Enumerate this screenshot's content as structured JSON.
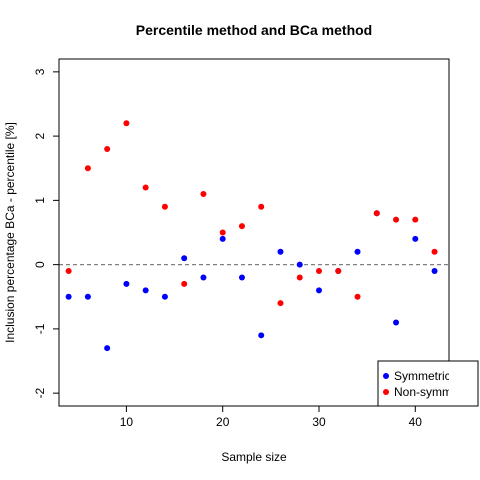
{
  "chart_data": {
    "type": "scatter",
    "title": "Percentile method and BCa method",
    "xlabel": "Sample size",
    "ylabel": "Inclusion percentage BCa - percentile [%]",
    "xlim": [
      3,
      43.5
    ],
    "ylim": [
      -2.2,
      3.2
    ],
    "xticks": [
      10,
      20,
      30,
      40
    ],
    "yticks": [
      -2,
      -1,
      0,
      1,
      2,
      3
    ],
    "reference_line": {
      "y": 0,
      "style": "dashed",
      "color": "#808080"
    },
    "series": [
      {
        "name": "Symmetric",
        "color": "#0000ff",
        "x": [
          4,
          6,
          8,
          10,
          12,
          14,
          16,
          18,
          20,
          22,
          24,
          26,
          28,
          30,
          32,
          34,
          36,
          38,
          40,
          42
        ],
        "y": [
          -0.5,
          -0.5,
          -1.3,
          -0.3,
          -0.4,
          -0.5,
          0.1,
          -0.2,
          0.4,
          -0.2,
          -1.1,
          0.2,
          0.0,
          -0.4,
          -0.1,
          0.2,
          0.8,
          -0.9,
          0.4,
          -0.1
        ]
      },
      {
        "name": "Non-symm",
        "color": "#ff0000",
        "x": [
          4,
          6,
          8,
          10,
          12,
          14,
          16,
          18,
          20,
          22,
          24,
          26,
          28,
          30,
          32,
          34,
          36,
          38,
          40,
          42
        ],
        "y": [
          -0.1,
          1.5,
          1.8,
          2.2,
          1.2,
          0.9,
          -0.3,
          1.1,
          0.5,
          0.6,
          0.9,
          -0.6,
          -0.2,
          -0.1,
          -0.1,
          -0.5,
          0.8,
          0.7,
          0.7,
          0.2
        ]
      }
    ],
    "legend": {
      "position": "bottom-right"
    },
    "grid": false
  }
}
